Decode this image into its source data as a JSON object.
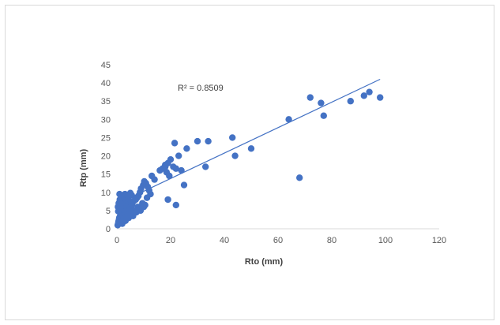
{
  "chart_data": {
    "type": "scatter",
    "xlabel": "Rto (mm)",
    "ylabel": "Rtp (mm)",
    "xlim": [
      0,
      120
    ],
    "ylim": [
      0,
      45
    ],
    "xticks": [
      0,
      20,
      40,
      60,
      80,
      100,
      120
    ],
    "yticks": [
      0,
      5,
      10,
      15,
      20,
      25,
      30,
      35,
      40,
      45
    ],
    "grid": false,
    "legend": "none",
    "marker_color": "#4472c4",
    "trendline": {
      "type": "linear",
      "x": [
        0,
        98
      ],
      "y": [
        6.8,
        41.0
      ],
      "color": "#4472c4",
      "label": "R² = 0.8509"
    },
    "series": [
      {
        "x": [
          0.3,
          0.5,
          0.6,
          0.8,
          1.0,
          1.2,
          1.5,
          1.8,
          2.0,
          0.4,
          0.7,
          1.1,
          1.4,
          1.9,
          2.3,
          2.6,
          3.0,
          0.9,
          1.3,
          1.6,
          2.2,
          2.8,
          3.4,
          3.8,
          4.2,
          1.0,
          1.7,
          2.4,
          3.1,
          3.6,
          4.5,
          5.0,
          5.5,
          0.5,
          1.2,
          2.0,
          2.7,
          3.3,
          4.0,
          4.8,
          5.6,
          6.2,
          7.0,
          7.5,
          8.0,
          8.6,
          9.0,
          9.8,
          10.2,
          10.8,
          11.5,
          12.0,
          13.0,
          14.0,
          6.5,
          7.8,
          8.4,
          9.5,
          10.5,
          11.2,
          12.5,
          1.5,
          2.5,
          3.5,
          4.5,
          5.8,
          0.8,
          2.0,
          3.2,
          4.4,
          6.0,
          7.2,
          8.8,
          10.0,
          16.0,
          17.0,
          18.0,
          18.5,
          19.0,
          20.0,
          19.5,
          21.0,
          22.0,
          23.0,
          24.0,
          25.0,
          26.0,
          22.0,
          19.0,
          18.0,
          21.5,
          30.0,
          33.0,
          34.0,
          43.0,
          44.0,
          50.0,
          64.0,
          68.0,
          72.0,
          76.0,
          77.0,
          87.0,
          92.0,
          94.0,
          98.0
        ],
        "y": [
          1.0,
          1.5,
          2.0,
          2.5,
          3.0,
          3.5,
          4.0,
          4.5,
          5.0,
          6.0,
          7.0,
          8.0,
          6.5,
          7.5,
          8.5,
          9.0,
          9.5,
          3.0,
          2.5,
          4.2,
          3.8,
          5.2,
          6.2,
          7.2,
          8.2,
          9.5,
          8.8,
          7.8,
          6.8,
          5.8,
          8.8,
          9.8,
          9.2,
          4.8,
          5.5,
          6.6,
          5.5,
          4.8,
          4.2,
          5.2,
          6.5,
          7.5,
          8.0,
          8.5,
          9.0,
          10.0,
          11.0,
          12.0,
          13.0,
          12.5,
          11.5,
          10.5,
          14.5,
          13.5,
          5.0,
          6.0,
          5.5,
          7.0,
          6.5,
          8.5,
          9.5,
          2.0,
          2.8,
          3.3,
          4.0,
          4.5,
          1.8,
          1.4,
          2.2,
          3.0,
          3.5,
          4.5,
          5.0,
          6.0,
          16.0,
          16.5,
          17.0,
          15.5,
          18.0,
          19.0,
          14.5,
          17.0,
          16.5,
          20.0,
          16.0,
          12.0,
          22.0,
          6.5,
          8.0,
          17.5,
          23.5,
          24.0,
          17.0,
          24.0,
          25.0,
          20.0,
          22.0,
          30.0,
          14.0,
          36.0,
          34.5,
          31.0,
          35.0,
          36.5,
          37.5,
          36.0
        ]
      }
    ]
  }
}
